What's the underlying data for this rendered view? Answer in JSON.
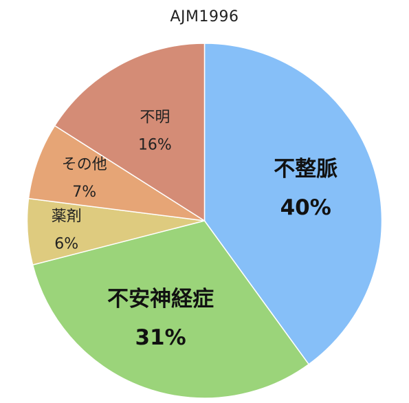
{
  "chart_data": {
    "type": "pie",
    "title": "AJM1996",
    "slices": [
      {
        "label": "不整脈",
        "value": 40,
        "value_label": "40%",
        "color": "#86bff8",
        "emphasis": true
      },
      {
        "label": "不安神経症",
        "value": 31,
        "value_label": "31%",
        "color": "#9bd47a",
        "emphasis": true
      },
      {
        "label": "薬剤",
        "value": 6,
        "value_label": "6%",
        "color": "#decb7f",
        "emphasis": false
      },
      {
        "label": "その他",
        "value": 7,
        "value_label": "7%",
        "color": "#e6a576",
        "emphasis": false
      },
      {
        "label": "不明",
        "value": 16,
        "value_label": "16%",
        "color": "#d48c76",
        "emphasis": false
      }
    ],
    "start_angle": "12 o'clock",
    "direction": "clockwise",
    "legend": "none"
  }
}
